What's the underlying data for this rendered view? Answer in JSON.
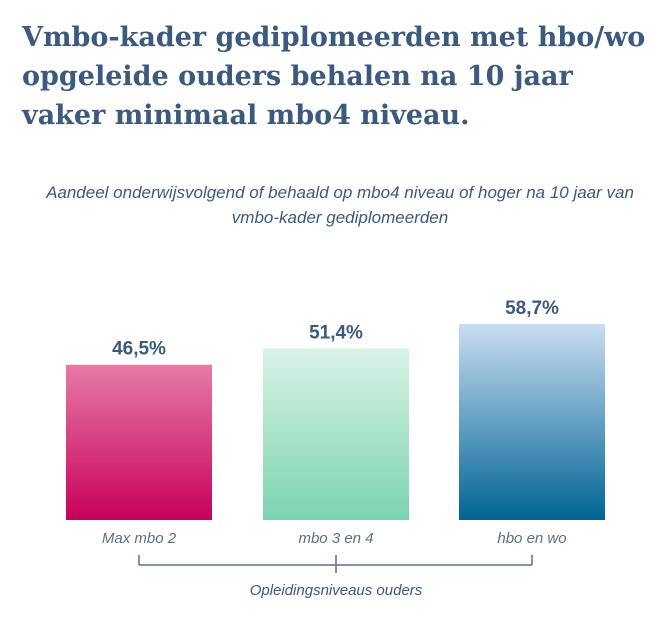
{
  "headline": "Vmbo-kader gediplomeerden met hbo/wo opgeleide ouders behalen na 10 jaar vaker minimaal mbo4 niveau.",
  "chart_data": {
    "type": "bar",
    "title": "Aandeel onderwijsvolgend  of behaald op mbo4 niveau of hoger na 10 jaar van vmbo-kader gediplomeerden",
    "xlabel": "Opleidingsniveaus ouders",
    "ylabel": "",
    "categories": [
      "Max mbo 2",
      "mbo 3 en 4",
      "hbo en wo"
    ],
    "values": [
      46.5,
      51.4,
      58.7
    ],
    "value_labels": [
      "46,5%",
      "51,4%",
      "58,7%"
    ],
    "ylim": [
      0,
      60
    ],
    "grid": false,
    "bar_colors": [
      {
        "top": "#e67aa6",
        "bottom": "#c8005a"
      },
      {
        "top": "#d9f2e7",
        "bottom": "#7bd4b0"
      },
      {
        "top": "#c9ddf1",
        "bottom": "#006495"
      }
    ],
    "axis_color": "#5b6f86"
  }
}
